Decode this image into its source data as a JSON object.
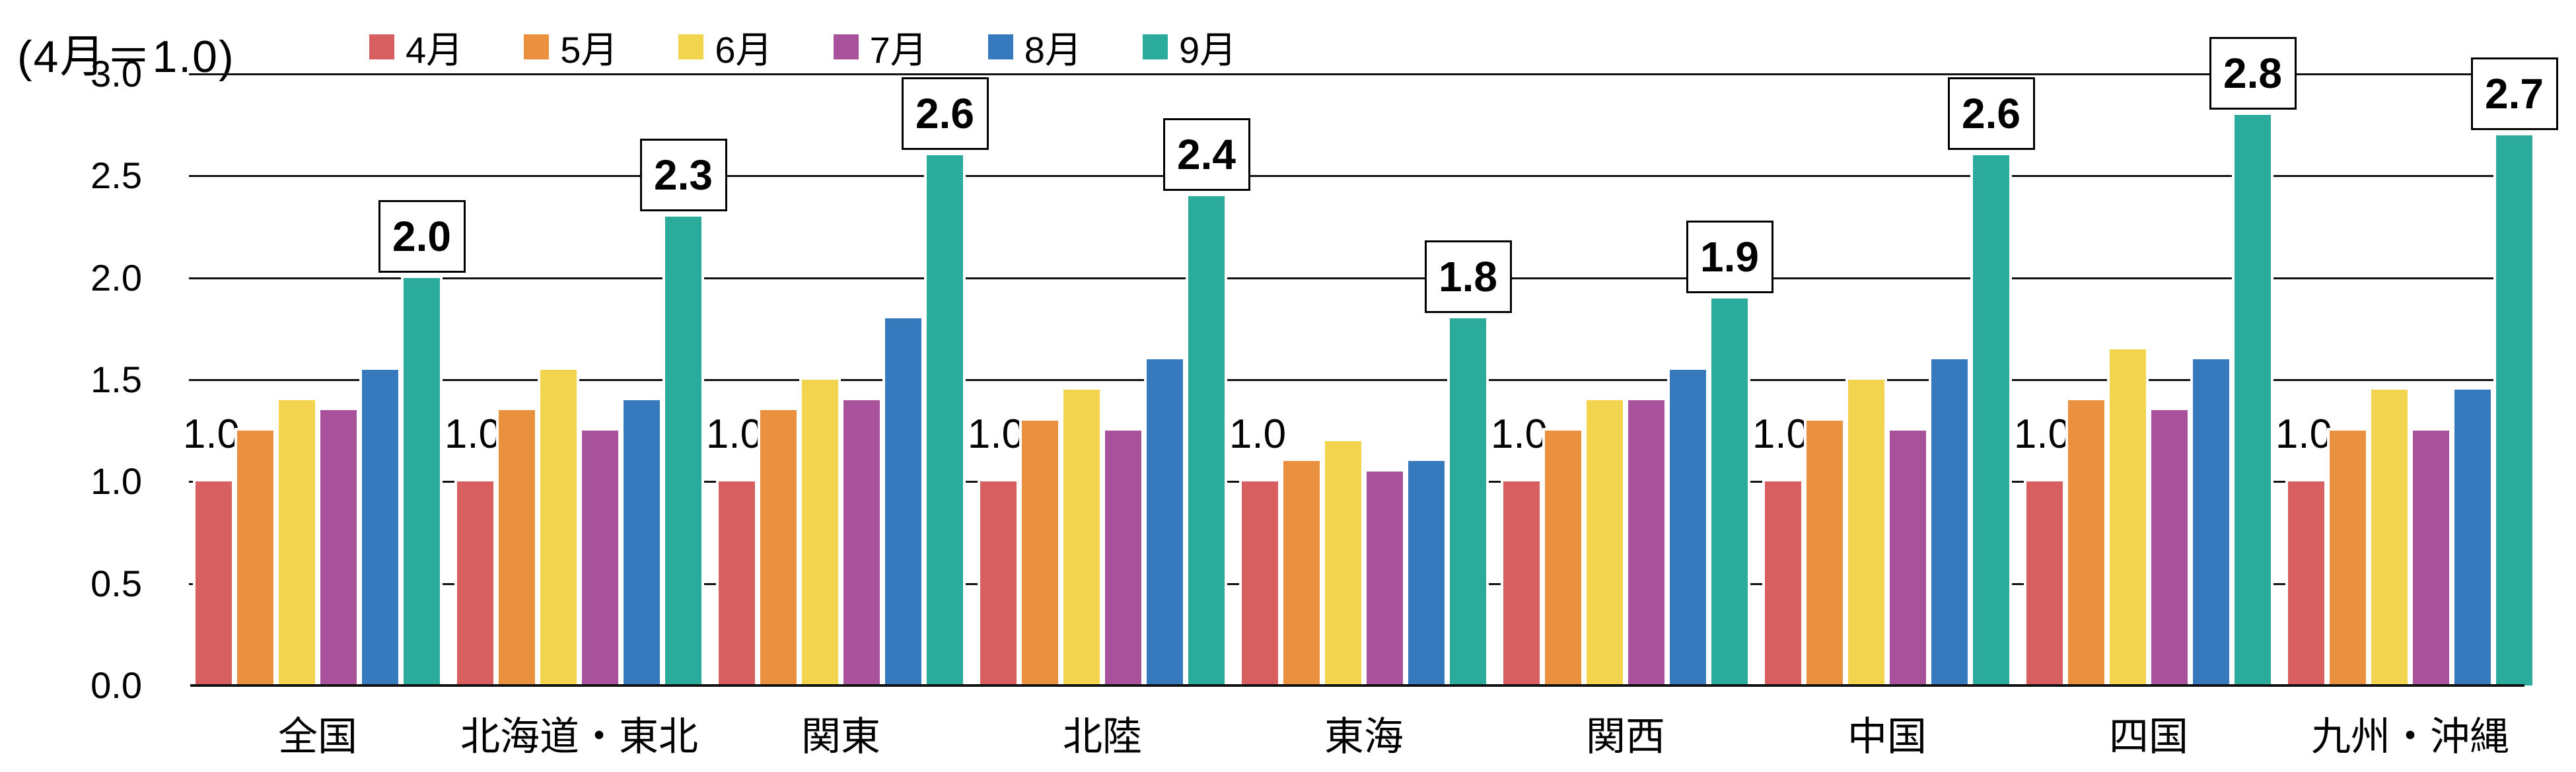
{
  "chart_data": {
    "type": "bar",
    "title": "(4月＝1.0)",
    "categories": [
      "全国",
      "北海道・東北",
      "関東",
      "北陸",
      "東海",
      "関西",
      "中国",
      "四国",
      "九州・沖縄"
    ],
    "series": [
      {
        "name": "4月",
        "color": "#d75f5f",
        "values": [
          1.0,
          1.0,
          1.0,
          1.0,
          1.0,
          1.0,
          1.0,
          1.0,
          1.0
        ]
      },
      {
        "name": "5月",
        "color": "#e9913f",
        "values": [
          1.25,
          1.35,
          1.35,
          1.3,
          1.1,
          1.25,
          1.3,
          1.4,
          1.25
        ]
      },
      {
        "name": "6月",
        "color": "#f2d44e",
        "values": [
          1.4,
          1.55,
          1.5,
          1.45,
          1.2,
          1.4,
          1.5,
          1.65,
          1.45
        ]
      },
      {
        "name": "7月",
        "color": "#a8529b",
        "values": [
          1.35,
          1.25,
          1.4,
          1.25,
          1.05,
          1.4,
          1.25,
          1.35,
          1.25
        ]
      },
      {
        "name": "8月",
        "color": "#3679bd",
        "values": [
          1.55,
          1.4,
          1.8,
          1.6,
          1.1,
          1.55,
          1.6,
          1.6,
          1.45
        ]
      },
      {
        "name": "9月",
        "color": "#2bab9b",
        "values": [
          2.0,
          2.3,
          2.6,
          2.4,
          1.8,
          1.9,
          2.6,
          2.8,
          2.7
        ]
      }
    ],
    "annotations": {
      "first_bar_label": "1.0",
      "callout_labels": [
        "2.0",
        "2.3",
        "2.6",
        "2.4",
        "1.8",
        "1.9",
        "2.6",
        "2.8",
        "2.7"
      ]
    },
    "ylabel": "",
    "xlabel": "",
    "ylim": [
      0.0,
      3.0
    ],
    "ytick_labels": [
      "0.0",
      "0.5",
      "1.0",
      "1.5",
      "2.0",
      "2.5",
      "3.0"
    ],
    "grid": "horizontal, black, visible between bar groups",
    "legend_position": "top"
  }
}
